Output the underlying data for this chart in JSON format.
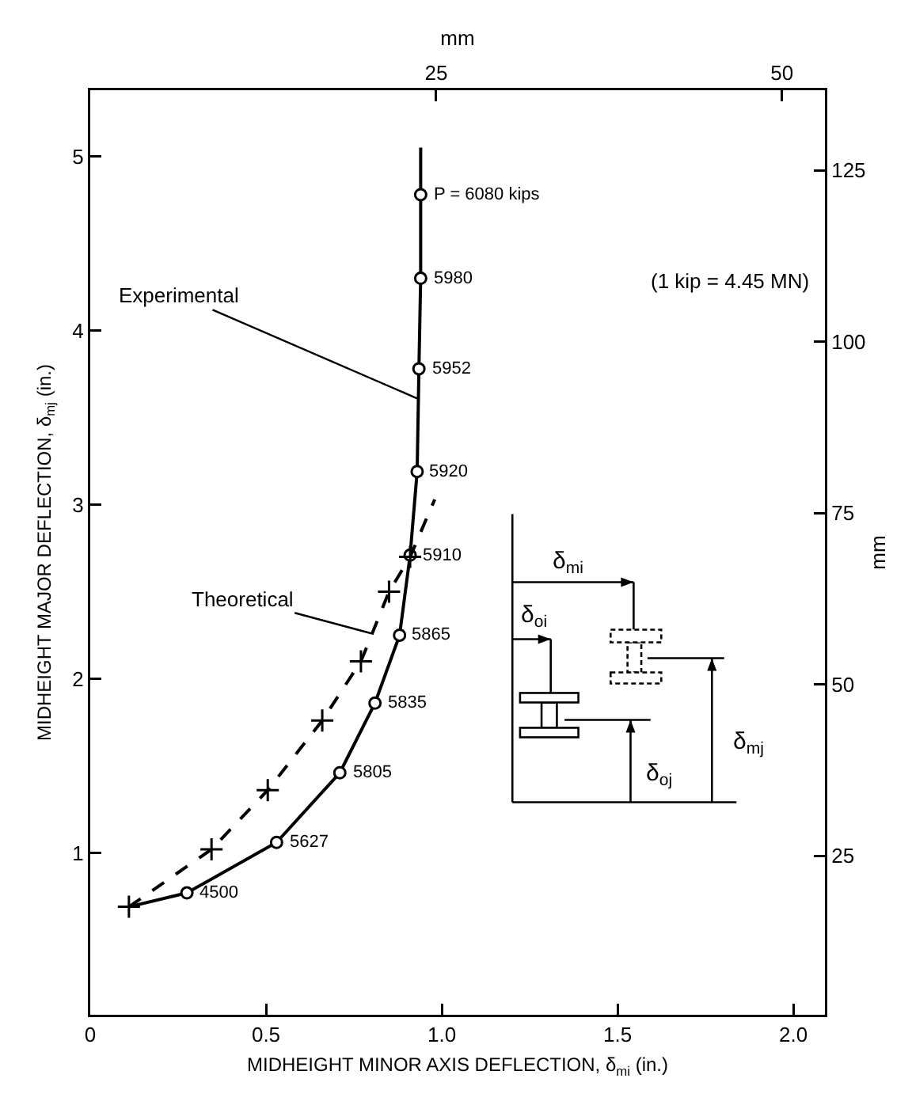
{
  "chart_data": {
    "type": "line",
    "xlabel": "MIDHEIGHT MINOR AXIS DEFLECTION, δ$_{mi}$ (in.)",
    "ylabel": "MIDHEIGHT MAJOR DEFLECTION, δ$_{mj}$ (in.)",
    "x2label": "mm",
    "y2label": "mm",
    "xlim": [
      0,
      2.09
    ],
    "xticks": [
      0,
      0.5,
      {
        "value": 1,
        "label": "1.0"
      },
      1.5,
      {
        "value": 2,
        "label": "2.0"
      }
    ],
    "ylim": [
      0.07,
      5.38
    ],
    "yticks": [
      1,
      2,
      3,
      4,
      5
    ],
    "x2lim": [
      0,
      53.1
    ],
    "x2ticks": [
      25,
      50
    ],
    "y2lim": [
      1.8,
      136.7
    ],
    "y2ticks": [
      25,
      50,
      75,
      100,
      125
    ],
    "grid": false,
    "annotations": [
      "(1 kip = 4.45 MN)",
      "δ$_{mi}$",
      "δ$_{oi}$",
      "δ$_{mj}$",
      "δ$_{oj}$",
      {
        "text": "Experimental",
        "x": 0.93,
        "y": 3.61
      },
      {
        "text": "Theoretical",
        "x": 0.8,
        "y": 2.26
      },
      {
        "text": "4500",
        "x": 0.275,
        "y": 0.77
      },
      {
        "text": "5627",
        "x": 0.53,
        "y": 1.06
      },
      {
        "text": "5805",
        "x": 0.71,
        "y": 1.46
      },
      {
        "text": "5835",
        "x": 0.81,
        "y": 1.86
      },
      {
        "text": "5865",
        "x": 0.88,
        "y": 2.25
      },
      {
        "text": "5910",
        "x": 0.91,
        "y": 2.71
      },
      {
        "text": "5920",
        "x": 0.93,
        "y": 3.19
      },
      {
        "text": "5952",
        "x": 0.935,
        "y": 3.78
      },
      {
        "text": "5980",
        "x": 0.94,
        "y": 4.3
      },
      {
        "text": "P = 6080 kips",
        "x": 0.94,
        "y": 4.78
      }
    ],
    "series": [
      {
        "color": "#000000",
        "line_style": "solid",
        "marker": "none",
        "x": [
          0.11,
          0.275,
          0.53,
          0.71,
          0.81,
          0.88,
          0.91,
          0.93,
          0.935,
          0.94,
          0.94,
          0.94
        ],
        "values": [
          0.69,
          0.77,
          1.06,
          1.46,
          1.86,
          2.25,
          2.71,
          3.19,
          3.78,
          4.3,
          4.78,
          5.05
        ]
      },
      {
        "type": "scatter",
        "color": "#000000",
        "marker": "circle",
        "x": [
          0.275,
          0.53,
          0.71,
          0.81,
          0.88,
          0.91,
          0.93,
          0.935,
          0.94,
          0.94
        ],
        "values": [
          0.77,
          1.06,
          1.46,
          1.86,
          2.25,
          2.71,
          3.19,
          3.78,
          4.3,
          4.78
        ]
      },
      {
        "color": "#000000",
        "line_style": "dashed",
        "marker": "none",
        "x": [
          0.11,
          0.345,
          0.505,
          0.66,
          0.77,
          0.85,
          0.91,
          0.98
        ],
        "values": [
          0.69,
          1.02,
          1.36,
          1.76,
          2.1,
          2.5,
          2.7,
          3.03
        ]
      },
      {
        "type": "scatter",
        "color": "#000000",
        "marker": "cross",
        "x": [
          0.11,
          0.345,
          0.505,
          0.66,
          0.77,
          0.85,
          0.91
        ],
        "values": [
          0.69,
          1.02,
          1.36,
          1.76,
          2.1,
          2.5,
          2.7
        ]
      }
    ]
  }
}
